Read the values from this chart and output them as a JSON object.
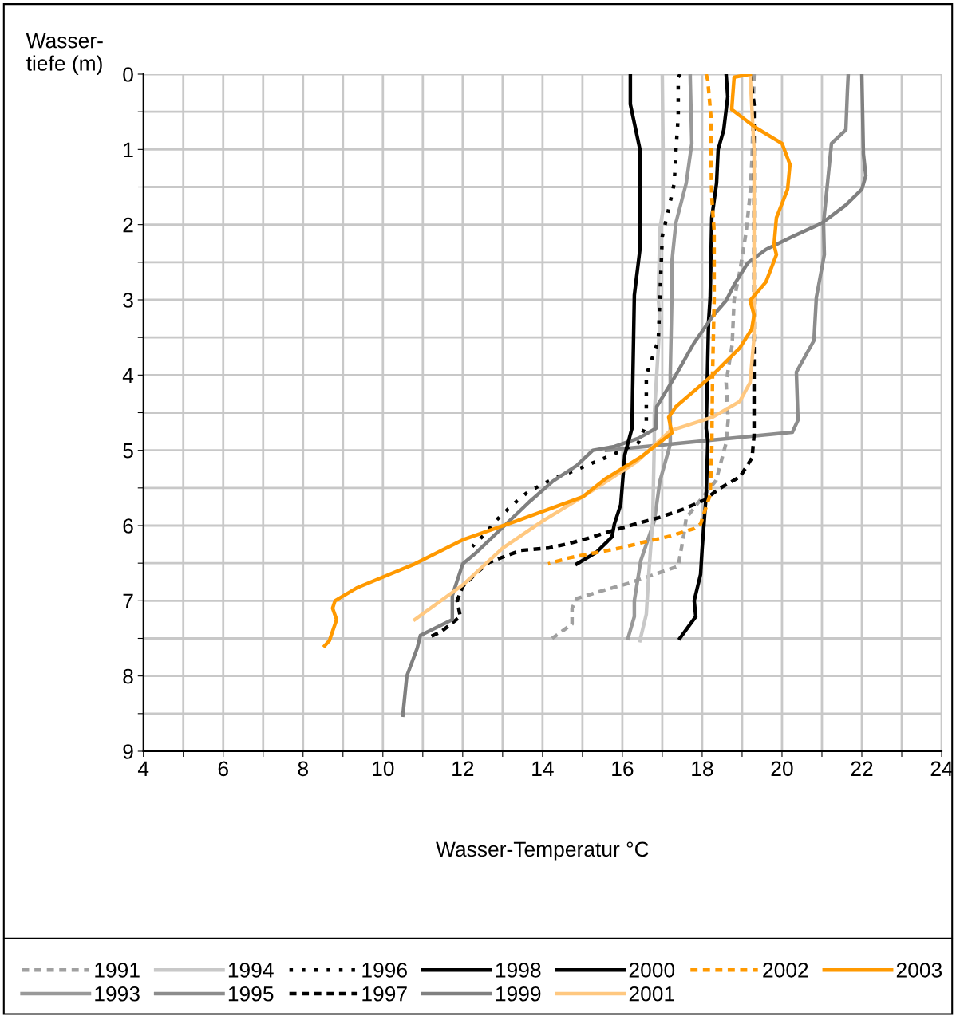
{
  "chart_data": {
    "type": "line",
    "xlabel": "Wasser-Temperatur °C",
    "ylabel": "Wasser-\ntiefe (m)",
    "xlim": [
      4,
      24
    ],
    "xticks": [
      4,
      {
        "value": 5,
        "label": null
      },
      6,
      {
        "value": 7,
        "label": null
      },
      8,
      {
        "value": 9,
        "label": null
      },
      10,
      {
        "value": 11,
        "label": null
      },
      12,
      {
        "value": 13,
        "label": null
      },
      14,
      {
        "value": 15,
        "label": null
      },
      16,
      {
        "value": 17,
        "label": null
      },
      18,
      {
        "value": 19,
        "label": null
      },
      20,
      {
        "value": 21,
        "label": null
      },
      22,
      {
        "value": 23,
        "label": null
      },
      24
    ],
    "ylim": [
      9,
      0
    ],
    "yticks": [
      0,
      {
        "value": 0.5,
        "label": null
      },
      1,
      {
        "value": 1.5,
        "label": null
      },
      2,
      {
        "value": 2.5,
        "label": null
      },
      3,
      {
        "value": 3.5,
        "label": null
      },
      4,
      {
        "value": 4.5,
        "label": null
      },
      5,
      {
        "value": 5.5,
        "label": null
      },
      6,
      {
        "value": 6.5,
        "label": null
      },
      7,
      {
        "value": 7.5,
        "label": null
      },
      8,
      {
        "value": 8.5,
        "label": null
      },
      9
    ],
    "grid": true,
    "legend": "bottom",
    "marker": "none",
    "series": [
      {
        "name": "1991",
        "color": "#a0a0a0",
        "line_style": "dashed",
        "x": [
          19.3,
          19.25,
          19.2,
          19.1,
          18.95,
          18.8,
          18.75,
          18.6,
          18.65,
          18.6,
          18.35,
          18.06,
          17.6,
          17.54,
          17.4,
          16.8,
          16.14,
          15.54,
          14.86,
          14.74,
          14.74,
          14.24
        ],
        "values": [
          0,
          1.1,
          1.6,
          2.1,
          2.6,
          3.0,
          3.6,
          4.1,
          4.6,
          4.9,
          5.4,
          5.59,
          5.9,
          6.12,
          6.54,
          6.65,
          6.77,
          6.86,
          6.97,
          7.1,
          7.31,
          7.5
        ]
      },
      {
        "name": "1993",
        "color": "#999999",
        "x": [
          17.7,
          17.7,
          17.74,
          17.6,
          17.34,
          17.24,
          17.24,
          17.2,
          17.2,
          16.94,
          16.8,
          16.46,
          16.3,
          16.3,
          16.14
        ],
        "values": [
          0,
          0.04,
          0.92,
          1.45,
          1.98,
          2.5,
          2.97,
          4.0,
          4.92,
          5.41,
          5.94,
          6.47,
          7.0,
          7.21,
          7.5
        ]
      },
      {
        "name": "1994",
        "color": "#c8c8c8",
        "x": [
          17.0,
          17.02,
          17.02,
          16.94,
          16.9,
          16.94,
          16.8,
          16.8,
          16.76,
          16.66,
          16.6,
          16.44
        ],
        "values": [
          0,
          1.0,
          1.8,
          2.06,
          2.97,
          3.29,
          4.53,
          4.88,
          5.94,
          6.65,
          7.18,
          7.53
        ]
      },
      {
        "name": "1995",
        "color": "#8c8c8c",
        "x": [
          21.66,
          21.64,
          21.6,
          21.24,
          21.14,
          21.04,
          21.06,
          20.86,
          20.8,
          20.36,
          20.4,
          20.26,
          16.0,
          15.6
        ],
        "values": [
          0,
          0.21,
          0.74,
          0.92,
          1.45,
          1.98,
          2.4,
          2.97,
          3.54,
          3.96,
          4.6,
          4.76,
          4.98,
          5.0
        ]
      },
      {
        "name": "1996",
        "color": "#000000",
        "line_style": "dotted",
        "x": [
          17.45,
          17.4,
          17.4,
          17.34,
          17.3,
          17.14,
          17.0,
          16.94,
          16.9,
          16.6,
          16.6,
          16.4,
          15.66,
          15.2,
          14.8,
          14.4,
          14.04,
          13.64,
          13.26,
          12.86,
          12.54,
          12.24
        ],
        "values": [
          0,
          0.04,
          0.57,
          1.03,
          1.45,
          1.84,
          2.16,
          2.97,
          3.54,
          4.0,
          4.65,
          4.9,
          5.08,
          5.18,
          5.27,
          5.35,
          5.44,
          5.55,
          5.72,
          5.92,
          6.12,
          6.28
        ]
      },
      {
        "name": "1997",
        "color": "#000000",
        "line_style": "dashed",
        "x": [
          19.2,
          19.3,
          19.3,
          19.25,
          18.95,
          18.4,
          18.06,
          17.54,
          16.94,
          16.46,
          15.8,
          15.26,
          14.66,
          14.14,
          13.46,
          13.2,
          12.66,
          12.34,
          12.0,
          11.86,
          11.94,
          11.46,
          11.1
        ],
        "values": [
          0,
          0.4,
          4.8,
          5.1,
          5.35,
          5.52,
          5.66,
          5.78,
          5.89,
          5.96,
          6.06,
          6.15,
          6.24,
          6.3,
          6.33,
          6.38,
          6.49,
          6.63,
          6.81,
          7.0,
          7.21,
          7.41,
          7.5
        ]
      },
      {
        "name": "1998",
        "color": "#000000",
        "x": [
          18.6,
          18.64,
          18.54,
          18.4,
          18.36,
          18.24,
          18.2,
          18.16,
          18.1,
          18.14,
          18.1,
          18.0,
          17.96,
          17.8,
          17.84,
          17.44
        ],
        "values": [
          0,
          0.3,
          0.74,
          1.0,
          1.45,
          1.91,
          2.97,
          3.29,
          4.71,
          4.88,
          5.59,
          6.3,
          6.65,
          7.0,
          7.21,
          7.5
        ]
      },
      {
        "name": "1999",
        "color": "#808080",
        "x": [
          22.0,
          22.04,
          22.1,
          22.0,
          21.6,
          21.0,
          20.26,
          19.6,
          19.14,
          18.8,
          18.6,
          18.26,
          17.8,
          17.34,
          16.86,
          16.84,
          16.4,
          15.8,
          15.26,
          14.86,
          14.26,
          13.66,
          12.34,
          12.0,
          11.74,
          11.74,
          10.94,
          10.86,
          10.6,
          10.5
        ],
        "values": [
          0,
          1.06,
          1.35,
          1.53,
          1.74,
          1.98,
          2.16,
          2.33,
          2.51,
          2.8,
          3.01,
          3.22,
          3.57,
          4.0,
          4.42,
          4.71,
          4.84,
          4.95,
          5.0,
          5.2,
          5.41,
          5.69,
          6.36,
          6.51,
          6.93,
          7.25,
          7.46,
          7.63,
          8.0,
          8.52
        ]
      },
      {
        "name": "2000",
        "color": "#000000",
        "x": [
          16.2,
          16.2,
          16.44,
          16.44,
          16.3,
          16.24,
          16.06,
          15.96,
          15.8,
          15.74,
          15.34,
          14.86
        ],
        "values": [
          0,
          0.4,
          1.0,
          2.33,
          2.94,
          4.71,
          5.06,
          5.72,
          5.98,
          6.15,
          6.36,
          6.51
        ]
      },
      {
        "name": "2001",
        "color": "#ffc880",
        "x": [
          19.2,
          19.3,
          19.3,
          19.2,
          18.94,
          18.26,
          17.2,
          16.34,
          15.0,
          14.0,
          13.0,
          12.0,
          10.8
        ],
        "values": [
          0,
          1.0,
          3.5,
          4.1,
          4.35,
          4.56,
          4.74,
          5.16,
          5.62,
          5.94,
          6.3,
          6.79,
          7.25
        ]
      },
      {
        "name": "2002",
        "color": "#ff9900",
        "line_style": "dashed",
        "x": [
          18.1,
          18.14,
          18.22,
          18.22,
          18.24,
          18.3,
          18.3,
          18.26,
          18.24,
          18.2,
          17.96,
          17.8,
          17.2,
          16.54,
          15.94,
          15.34,
          14.66,
          14.14
        ],
        "values": [
          0,
          0.08,
          0.57,
          1.1,
          1.63,
          2.09,
          3.0,
          4.0,
          5.0,
          5.59,
          5.98,
          6.04,
          6.14,
          6.22,
          6.3,
          6.36,
          6.43,
          6.51
        ]
      },
      {
        "name": "2003",
        "color": "#ff9900",
        "x": [
          19.2,
          18.8,
          18.74,
          19.34,
          20.0,
          20.2,
          20.14,
          19.86,
          19.8,
          19.86,
          19.6,
          19.2,
          19.3,
          19.24,
          18.94,
          18.26,
          17.34,
          17.16,
          17.24,
          16.46,
          15.6,
          15.0,
          13.34,
          12.0,
          10.8,
          9.34,
          8.8,
          8.74,
          8.84,
          8.66,
          8.54
        ],
        "values": [
          0,
          0.04,
          0.47,
          0.71,
          0.92,
          1.2,
          1.53,
          1.91,
          2.27,
          2.4,
          2.76,
          3.01,
          3.2,
          3.39,
          3.64,
          4.0,
          4.42,
          4.56,
          4.77,
          5.09,
          5.37,
          5.62,
          5.94,
          6.19,
          6.51,
          6.83,
          7.0,
          7.1,
          7.25,
          7.53,
          7.6
        ]
      }
    ]
  }
}
